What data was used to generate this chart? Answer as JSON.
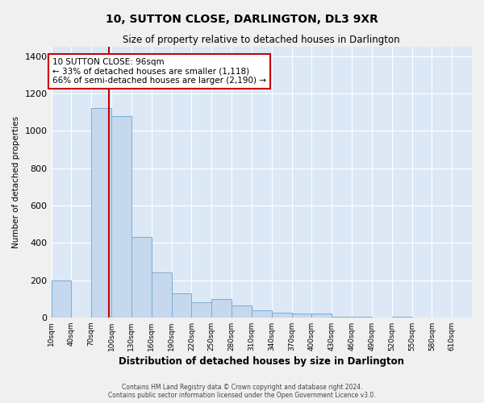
{
  "title1": "10, SUTTON CLOSE, DARLINGTON, DL3 9XR",
  "title2": "Size of property relative to detached houses in Darlington",
  "xlabel": "Distribution of detached houses by size in Darlington",
  "ylabel": "Number of detached properties",
  "annotation_line1": "10 SUTTON CLOSE: 96sqm",
  "annotation_line2": "← 33% of detached houses are smaller (1,118)",
  "annotation_line3": "66% of semi-detached houses are larger (2,190) →",
  "property_size": 96,
  "bin_starts": [
    10,
    40,
    70,
    100,
    130,
    160,
    190,
    220,
    250,
    280,
    310,
    340,
    370,
    400,
    430,
    460,
    490,
    520,
    550,
    580,
    610
  ],
  "bin_width": 30,
  "bar_heights": [
    200,
    0,
    1120,
    1080,
    430,
    240,
    130,
    80,
    100,
    65,
    40,
    25,
    20,
    20,
    5,
    5,
    0,
    5,
    0,
    0,
    0
  ],
  "bar_color": "#c5d8ee",
  "bar_edge_color": "#7aadd4",
  "background_color": "#dce8f5",
  "red_line_color": "#cc0000",
  "annotation_box_color": "#ffffff",
  "annotation_box_edge": "#cc0000",
  "ylim": [
    0,
    1450
  ],
  "ytick_interval": 200,
  "footer_line1": "Contains HM Land Registry data © Crown copyright and database right 2024.",
  "footer_line2": "Contains public sector information licensed under the Open Government Licence v3.0."
}
